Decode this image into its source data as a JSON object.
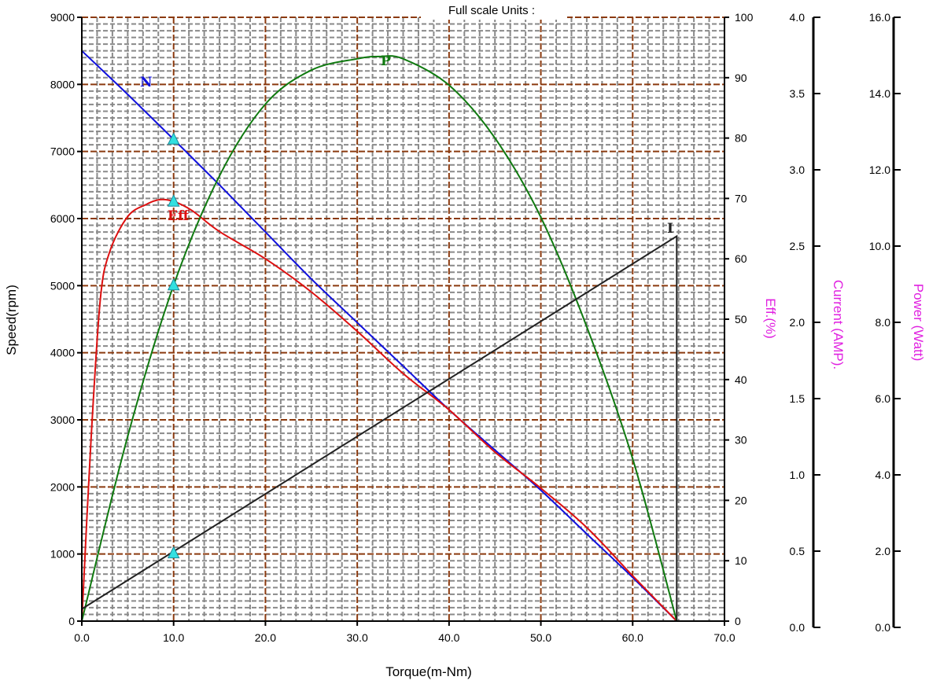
{
  "chart_data": {
    "type": "line",
    "title": "Full scale  Units :",
    "grid": true,
    "colors": {
      "speed": "#1010dd",
      "efficiency": "#dd1010",
      "power": "#107a10",
      "current": "#222222",
      "major_grid": "#8b3a0f",
      "minor_grid": "#8a8a8a",
      "marker": "#33e0e0",
      "axis_title_secondary": "#e020e0"
    },
    "x_axis": {
      "label": "Torque(m-Nm)",
      "range": [
        0,
        70
      ],
      "ticks": [
        "0.0",
        "10.0",
        "20.0",
        "30.0",
        "40.0",
        "50.0",
        "60.0",
        "70.0"
      ]
    },
    "y_axes": [
      {
        "id": "speed",
        "label": "Speed(rpm)",
        "range": [
          0,
          9000
        ],
        "ticks": [
          "0",
          "1000",
          "2000",
          "3000",
          "4000",
          "5000",
          "6000",
          "7000",
          "8000",
          "9000"
        ]
      },
      {
        "id": "eff",
        "label": "Eff.(%)",
        "range": [
          0,
          100
        ],
        "ticks": [
          "0",
          "10",
          "20",
          "30",
          "40",
          "50",
          "60",
          "70",
          "80",
          "90",
          "100"
        ]
      },
      {
        "id": "current",
        "label": "Current (AMP).",
        "range": [
          0,
          4
        ],
        "ticks": [
          "0.0",
          "0.5",
          "1.0",
          "1.5",
          "2.0",
          "2.5",
          "3.0",
          "3.5",
          "4.0"
        ]
      },
      {
        "id": "power",
        "label": "Power (Watt)",
        "range": [
          0,
          16
        ],
        "ticks": [
          "0.0",
          "2.0",
          "4.0",
          "6.0",
          "8.0",
          "10.0",
          "12.0",
          "14.0",
          "16.0"
        ]
      }
    ],
    "series": [
      {
        "name": "N",
        "axis": "speed",
        "x": [
          0,
          5,
          10,
          15,
          20,
          25,
          30,
          35,
          40,
          45,
          50,
          55,
          60,
          64.8
        ],
        "y": [
          8500,
          7850,
          7180,
          6500,
          5800,
          5100,
          4450,
          3800,
          3150,
          2550,
          1950,
          1300,
          650,
          0
        ]
      },
      {
        "name": "Eff",
        "axis": "eff",
        "x": [
          0,
          1,
          2,
          3,
          5,
          7,
          8.5,
          10,
          12,
          15,
          20,
          25,
          30,
          35,
          40,
          45,
          50,
          55,
          60,
          64.8
        ],
        "y": [
          0,
          30,
          53,
          61,
          67,
          69,
          69.8,
          69.5,
          68,
          64.5,
          60,
          54.5,
          48,
          41,
          35,
          28,
          22,
          15.5,
          7.5,
          0
        ]
      },
      {
        "name": "P",
        "axis": "power",
        "x": [
          0,
          5,
          10,
          15,
          20,
          25,
          30,
          32.4,
          35,
          40,
          45,
          50,
          55,
          60,
          64.8
        ],
        "y": [
          0,
          4.9,
          8.9,
          11.8,
          13.7,
          14.6,
          14.9,
          14.96,
          14.9,
          14.2,
          12.8,
          10.7,
          7.8,
          4.3,
          0
        ]
      },
      {
        "name": "I",
        "axis": "current",
        "x": [
          0,
          64.8,
          64.8
        ],
        "y": [
          0.08,
          2.55,
          0
        ]
      }
    ],
    "markers": {
      "x": 10,
      "points": [
        {
          "axis": "speed",
          "y": 7180
        },
        {
          "axis": "eff",
          "y": 69.5
        },
        {
          "axis": "power",
          "y": 8.9
        },
        {
          "axis": "current",
          "y": 0.45
        }
      ]
    }
  }
}
